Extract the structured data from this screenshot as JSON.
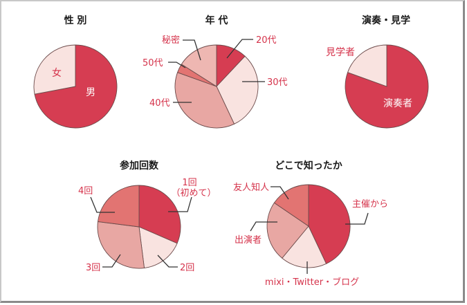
{
  "colors": {
    "c1": "#d63d52",
    "c2": "#f9e3e0",
    "c3": "#e8a7a3",
    "c4": "#e27472",
    "c5": "#eeb7b2",
    "label": "#d5334b"
  },
  "chart_data": [
    {
      "type": "pie",
      "title": "性 別",
      "categories": [
        "男",
        "女"
      ],
      "values": [
        72,
        28
      ],
      "start_angle": "12 o'clock, clockwise"
    },
    {
      "type": "pie",
      "title": "年 代",
      "categories": [
        "20代",
        "30代",
        "40代",
        "50代",
        "秘密"
      ],
      "values": [
        12,
        31,
        37.5,
        3.5,
        16
      ],
      "start_angle": "12 o'clock, clockwise"
    },
    {
      "type": "pie",
      "title": "演奏・見学",
      "categories": [
        "演奏者",
        "見学者"
      ],
      "values": [
        80.5,
        19.5
      ],
      "start_angle": "12 o'clock, clockwise"
    },
    {
      "type": "pie",
      "title": "参加回数",
      "categories": [
        "1回（初めて）",
        "2回",
        "3回",
        "4回"
      ],
      "values": [
        31.5,
        16.5,
        29,
        23
      ],
      "start_angle": "12 o'clock, clockwise"
    },
    {
      "type": "pie",
      "title": "どこで知ったか",
      "categories": [
        "主催から",
        "mixi・Twitter・ブログ",
        "出演者",
        "友人知人"
      ],
      "values": [
        43,
        18,
        23.5,
        15.5
      ],
      "start_angle": "12 o'clock, clockwise"
    }
  ],
  "labels": {
    "gender": {
      "title": "性 別",
      "male": "男",
      "female": "女"
    },
    "age": {
      "title": "年 代",
      "a20": "20代",
      "a30": "30代",
      "a40": "40代",
      "a50": "50代",
      "secret": "秘密"
    },
    "perf": {
      "title": "演奏・見学",
      "performer": "演奏者",
      "visitor": "見学者"
    },
    "count": {
      "title": "参加回数",
      "c1a": "1回",
      "c1b": "（初めて）",
      "c2": "2回",
      "c3": "3回",
      "c4": "4回"
    },
    "source": {
      "title": "どこで知ったか",
      "organizer": "主催から",
      "sns": "mixi・Twitter・ブログ",
      "performer": "出演者",
      "friend": "友人知人"
    }
  }
}
